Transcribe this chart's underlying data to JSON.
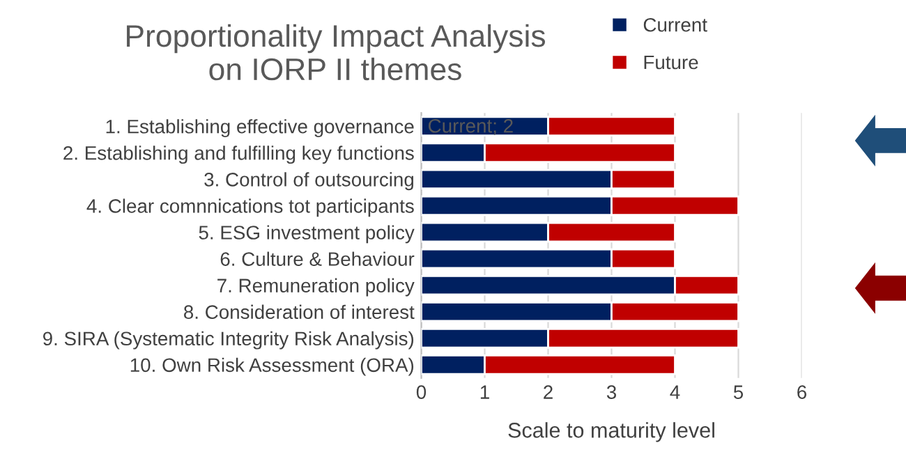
{
  "chart_data": {
    "type": "bar",
    "orientation": "horizontal",
    "stacked": true,
    "title": "Proportionality Impact Analysis\non IORP II themes",
    "xlabel": "Scale to maturity level",
    "categories": [
      "1. Establishing effective governance",
      "2. Establishing and fulfilling key functions",
      "3. Control of outsourcing",
      "4. Clear comnnications tot participants",
      "5. ESG investment policy",
      "6. Culture & Behaviour",
      "7. Remuneration policy",
      "8. Consideration of interest",
      "9. SIRA (Systematic Integrity Risk Analysis)",
      "10. Own Risk Assessment (ORA)"
    ],
    "series": [
      {
        "name": "Current",
        "color": "#002060",
        "values": [
          2,
          1,
          3,
          3,
          2,
          3,
          4,
          3,
          2,
          1
        ],
        "value_labels": [
          "Current; 2",
          null,
          null,
          null,
          null,
          null,
          null,
          null,
          null,
          null
        ]
      },
      {
        "name": "Future",
        "color": "#c00000",
        "values": [
          2,
          3,
          1,
          2,
          2,
          1,
          1,
          2,
          3,
          3
        ]
      }
    ],
    "xlim": [
      0,
      6
    ],
    "xticks": [
      0,
      1,
      2,
      3,
      4,
      5,
      6
    ],
    "grid": "x",
    "legend": "top right"
  }
}
